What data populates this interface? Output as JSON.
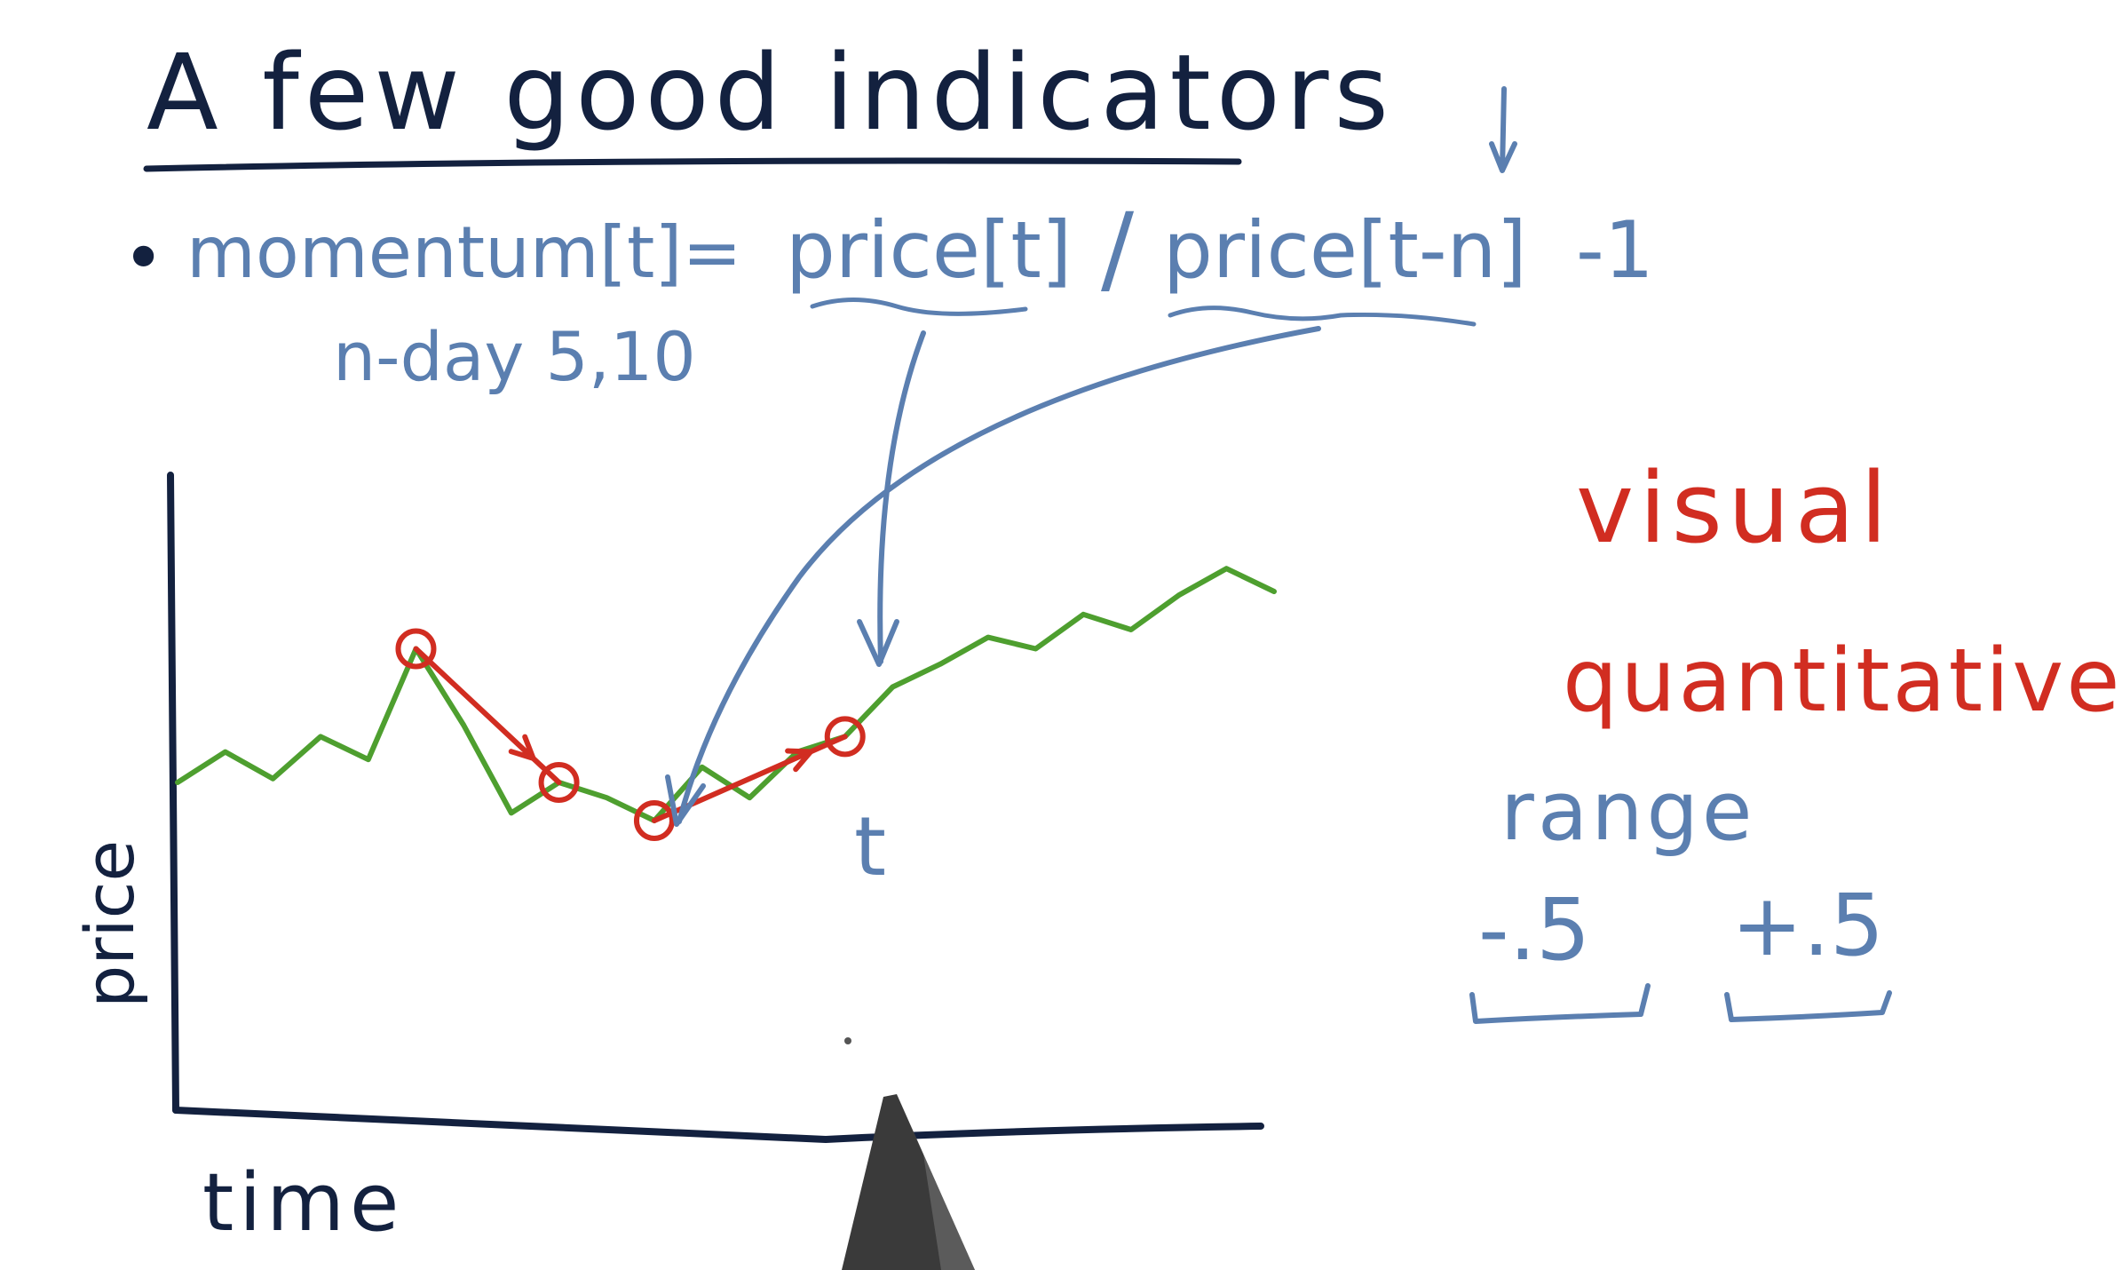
{
  "title": "A few good indicators",
  "formula": {
    "bullet": "•",
    "lhs": "momentum[t]=",
    "numerator": "price[t]",
    "slash": "/",
    "denominator": "price[t-n]",
    "suffix": "-1",
    "note": "n-day 5,10"
  },
  "chart": {
    "ylabel": "price",
    "xlabel": "time",
    "t_label": "t"
  },
  "side": {
    "visual": "visual",
    "quantitative": "quantitative",
    "range": "range",
    "low": "-.5",
    "high": "+.5"
  },
  "colors": {
    "dark": "#13213f",
    "blue": "#5b7fb0",
    "red": "#d12d21",
    "green": "#4e9f2f"
  },
  "chart_data": {
    "type": "line",
    "x": [
      0,
      1,
      2,
      3,
      4,
      5,
      6,
      7,
      8,
      9,
      10,
      11,
      12,
      13,
      14,
      15,
      16,
      17,
      18,
      19,
      20,
      21,
      22,
      23
    ],
    "series": [
      {
        "values": [
          30,
          38,
          31,
          42,
          36,
          65,
          45,
          22,
          30,
          26,
          20,
          34,
          26,
          38,
          42,
          55,
          61,
          68,
          65,
          74,
          70,
          79,
          86,
          80
        ]
      }
    ],
    "xlabel": "time",
    "ylabel": "price",
    "highlight_points": [
      5,
      8,
      10,
      14
    ]
  }
}
